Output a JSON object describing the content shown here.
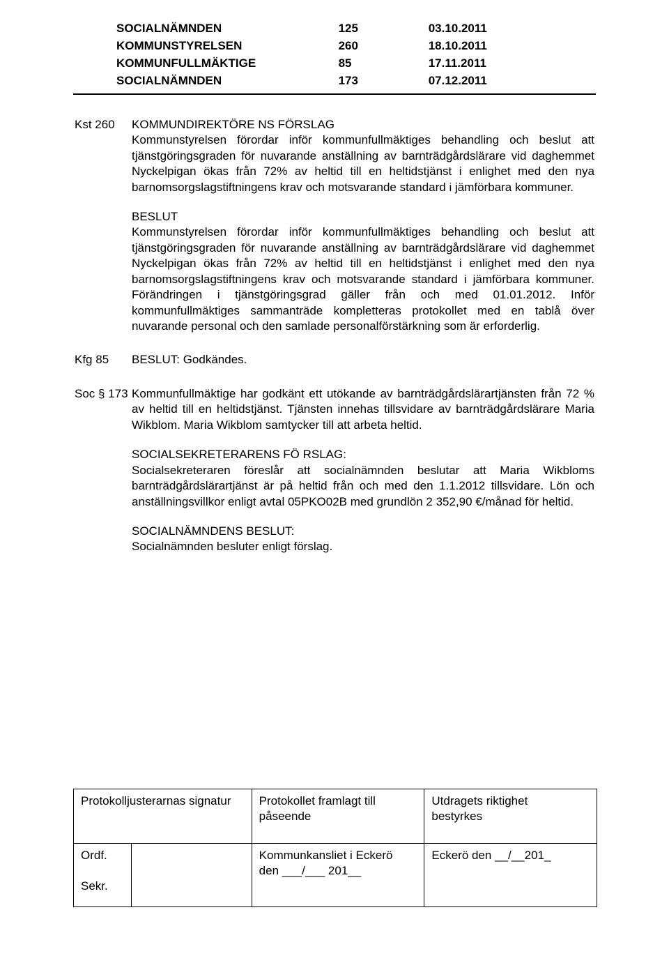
{
  "header": {
    "rows": [
      {
        "label": "SOCIALNÄMNDEN",
        "num": "125",
        "date": "03.10.2011"
      },
      {
        "label": "KOMMUNSTYRELSEN",
        "num": "260",
        "date": "18.10.2011"
      },
      {
        "label": "KOMMUNFULLMÄKTIGE",
        "num": "85",
        "date": "17.11.2011"
      },
      {
        "label": "SOCIALNÄMNDEN",
        "num": "173",
        "date": "07.12.2011"
      }
    ]
  },
  "blocks": {
    "kst260": {
      "ref": "Kst 260",
      "title": "KOMMUNDIREKTÖRE NS FÖRSLAG",
      "p1": "Kommunstyrelsen förordar inför kommunfullmäktiges behandling och beslut att tjänstgöringsgraden för nuvarande anställning av barnträdgårdslärare vid daghemmet Nyckelpigan ökas från 72% av heltid till en heltidstjänst i enlighet med den nya barnomsorgslagstiftningens krav och motsvarande standard i jämförbara kommuner.",
      "beslut_heading": "BESLUT",
      "p2": "Kommunstyrelsen förordar inför kommunfullmäktiges behandling och beslut att tjänstgöringsgraden för nuvarande anställning av barnträdgårdslärare vid daghemmet Nyckelpigan ökas från 72% av heltid till en heltidstjänst i enlighet med den nya barnomsorgslagstiftningens krav och motsvarande standard i jämförbara kommuner. Förändringen i tjänstgöringsgrad gäller från och med 01.01.2012. Inför kommunfullmäktiges sammanträde kompletteras protokollet med en tablå över nuvarande personal och den samlade personalförstärkning som är erforderlig."
    },
    "kfg85": {
      "ref": "Kfg 85",
      "text": "BESLUT: Godkändes."
    },
    "soc173": {
      "ref": "Soc § 173",
      "p1": "Kommunfullmäktige har godkänt ett utökande av barnträdgårdslärartjänsten från 72 % av heltid till en heltidstjänst. Tjänsten innehas tillsvidare av barnträdgårdslärare Maria Wikblom. Maria Wikblom samtycker till att arbeta heltid.",
      "p2_heading": "SOCIALSEKRETERARENS FÖ RSLAG:",
      "p2": "Socialsekreteraren föreslår att socialnämnden beslutar att Maria Wikbloms barnträdgårdslärartjänst är på heltid från och med den 1.1.2012 tillsvidare. Lön och anställningsvillkor enligt avtal 05PKO02B med grundlön 2 352,90 €/månad för heltid.",
      "p3_heading": "SOCIALNÄMNDENS BESLUT:",
      "p3": "Socialnämnden besluter enligt förslag."
    }
  },
  "footer": {
    "r1c1": "Protokolljusterarnas signatur",
    "r1c2": "Protokollet framlagt till påseende",
    "r1c3_line1": "Utdragets riktighet",
    "r1c3_line2": "bestyrkes",
    "r2_ordf": "Ordf.",
    "r2_sekr": "Sekr.",
    "r2c2_line1": "Kommunkansliet i Eckerö",
    "r2c2_line2": "den ___/___ 201__",
    "r2c3": "Eckerö den __/__201_"
  }
}
